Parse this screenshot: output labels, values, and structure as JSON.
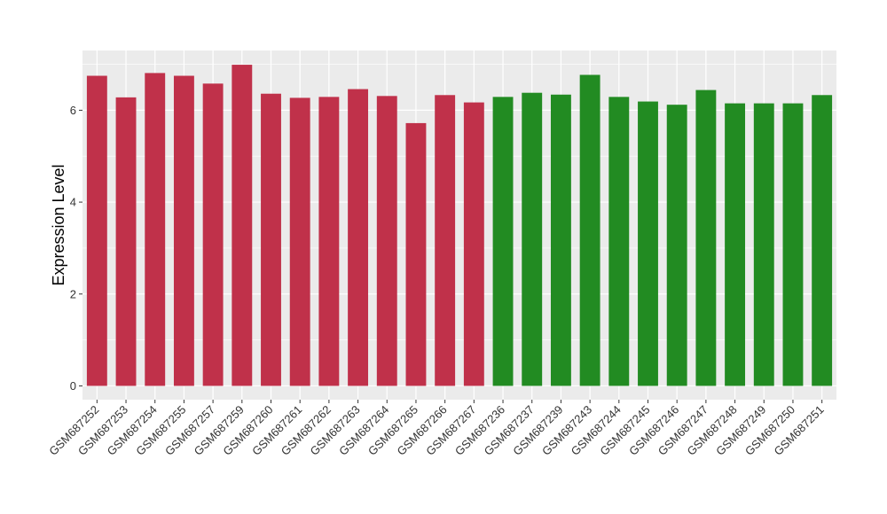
{
  "chart_data": {
    "type": "bar",
    "title": "",
    "xlabel": "",
    "ylabel": "Expression Level",
    "ylim": [
      -0.3,
      7.3
    ],
    "yticks": [
      0,
      2,
      4,
      6
    ],
    "grid": true,
    "legend": "none",
    "categories": [
      "GSM687252",
      "GSM687253",
      "GSM687254",
      "GSM687255",
      "GSM687257",
      "GSM687259",
      "GSM687260",
      "GSM687261",
      "GSM687262",
      "GSM687263",
      "GSM687264",
      "GSM687265",
      "GSM687266",
      "GSM687267",
      "GSM687236",
      "GSM687237",
      "GSM687239",
      "GSM687243",
      "GSM687244",
      "GSM687245",
      "GSM687246",
      "GSM687247",
      "GSM687248",
      "GSM687249",
      "GSM687250",
      "GSM687251"
    ],
    "values": [
      6.75,
      6.28,
      6.81,
      6.75,
      6.58,
      6.99,
      6.36,
      6.27,
      6.29,
      6.46,
      6.31,
      5.72,
      6.33,
      6.17,
      6.29,
      6.38,
      6.34,
      6.77,
      6.29,
      6.19,
      6.12,
      6.44,
      6.15,
      6.15,
      6.15,
      6.33
    ],
    "bar_colors": [
      "#C0314A",
      "#C0314A",
      "#C0314A",
      "#C0314A",
      "#C0314A",
      "#C0314A",
      "#C0314A",
      "#C0314A",
      "#C0314A",
      "#C0314A",
      "#C0314A",
      "#C0314A",
      "#C0314A",
      "#C0314A",
      "#228B22",
      "#228B22",
      "#228B22",
      "#228B22",
      "#228B22",
      "#228B22",
      "#228B22",
      "#228B22",
      "#228B22",
      "#228B22",
      "#228B22",
      "#228B22"
    ],
    "panel_background": "#EBEBEB",
    "grid_color": "#FFFFFF"
  }
}
